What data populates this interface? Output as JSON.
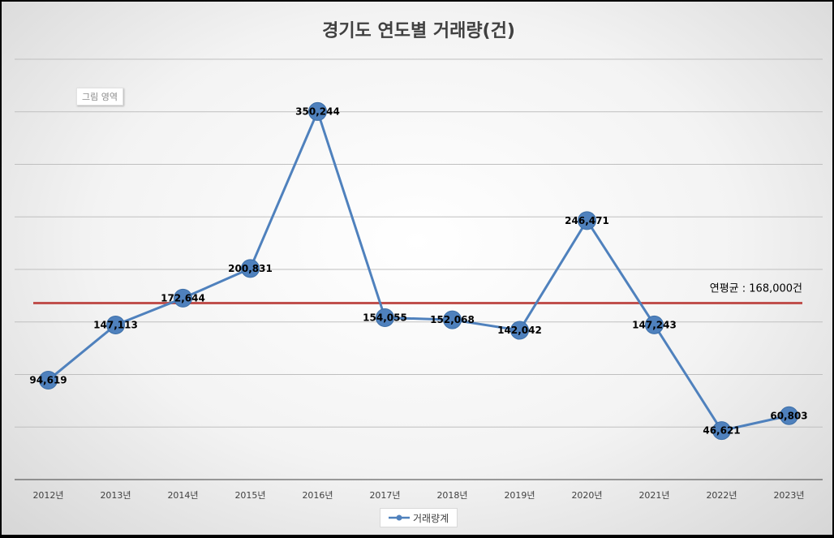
{
  "chart_data": {
    "type": "line",
    "title": "경기도 연도별 거래량(건)",
    "categories": [
      "2012년",
      "2013년",
      "2014년",
      "2015년",
      "2016년",
      "2017년",
      "2018년",
      "2019년",
      "2020년",
      "2021년",
      "2022년",
      "2023년"
    ],
    "series": [
      {
        "name": "거래량계",
        "values": [
          94619,
          147113,
          172644,
          200831,
          350244,
          154055,
          152068,
          142042,
          246471,
          147243,
          46621,
          60803
        ],
        "data_labels": [
          "94,619",
          "147,113",
          "172,644",
          "200,831",
          "350,244",
          "154,055",
          "152,068",
          "142,042",
          "246,471",
          "147,243",
          "46,621",
          "60,803"
        ],
        "color": "#4f81bd"
      }
    ],
    "reference_line": {
      "value": 168000,
      "label": "연평균 : 168,000건",
      "color": "#c0504d"
    },
    "ylim": [
      0,
      400000
    ],
    "y_gridline_step": 50000,
    "y_tick_labels_shown": false,
    "grid": true,
    "legend_position": "bottom",
    "plot_area_tag": "그림 영역"
  }
}
